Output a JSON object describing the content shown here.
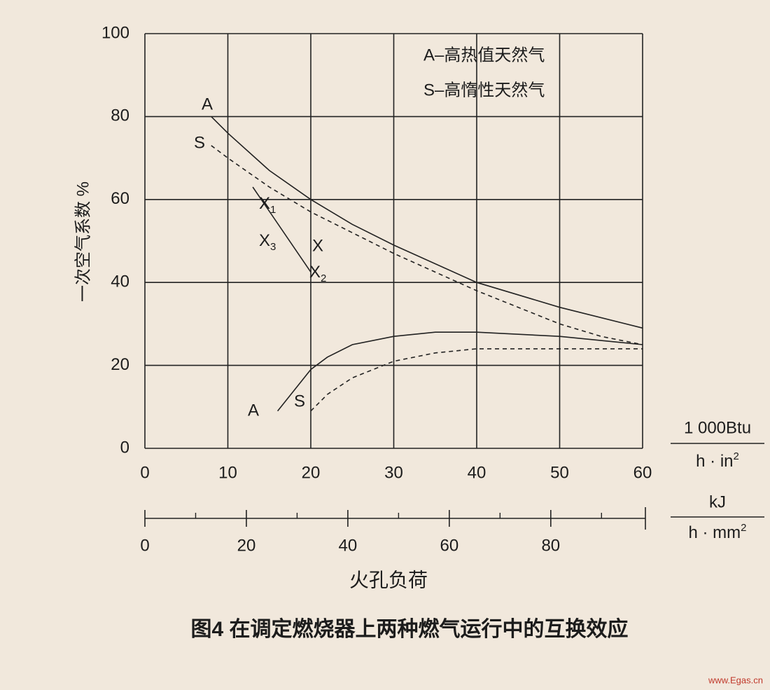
{
  "chart_data": {
    "type": "line",
    "caption": "图4  在调定燃烧器上两种燃气运行中的互换效应",
    "y_label": "一次空气系数 %",
    "x_label": "火孔负荷",
    "x_unit": {
      "top": "1 000Btu",
      "bottom": "h · in",
      "sup": "2"
    },
    "x2_unit": {
      "top": "kJ",
      "bottom": "h · mm",
      "sup": "2"
    },
    "legend_notes": [
      "A–高热值天然气",
      "S–高惰性天然气"
    ],
    "xlim": [
      0,
      60
    ],
    "xticks": [
      0,
      10,
      20,
      30,
      40,
      50,
      60
    ],
    "ylim": [
      0,
      100
    ],
    "yticks": [
      0,
      20,
      40,
      60,
      80,
      100
    ],
    "x2lim": [
      0,
      98.1
    ],
    "x2ticks": [
      0,
      20,
      40,
      60,
      80
    ],
    "x2minor": [
      10,
      30,
      50,
      70,
      90
    ],
    "grid": true,
    "series": [
      {
        "name": "A",
        "color": "#222222",
        "dash": false,
        "x": [
          8,
          10,
          15,
          20,
          25,
          30,
          40,
          50,
          60
        ],
        "values": [
          80,
          76,
          67,
          60,
          54,
          49,
          40,
          34,
          29
        ]
      },
      {
        "name": "S",
        "color": "#222222",
        "dash": true,
        "x": [
          8,
          10,
          15,
          20,
          25,
          30,
          40,
          50,
          55,
          60
        ],
        "values": [
          73,
          70,
          63,
          57,
          52,
          47,
          38,
          30,
          27,
          25
        ]
      },
      {
        "name": "A",
        "color": "#222222",
        "dash": false,
        "x": [
          16,
          18,
          20,
          22,
          25,
          30,
          35,
          40,
          50,
          60
        ],
        "values": [
          9,
          14,
          19,
          22,
          25,
          27,
          28,
          28,
          27,
          25
        ]
      },
      {
        "name": "S",
        "color": "#222222",
        "dash": true,
        "x": [
          20,
          22,
          25,
          30,
          35,
          40,
          50,
          60
        ],
        "values": [
          9,
          13,
          17,
          21,
          23,
          24,
          24,
          24
        ]
      },
      {
        "name": "X",
        "color": "#222222",
        "dash": false,
        "x": [
          13,
          20
        ],
        "values": [
          63,
          42.5
        ]
      }
    ],
    "annotations": [
      {
        "text": "X",
        "sub": "1"
      },
      {
        "text": "X",
        "sub": "3"
      },
      {
        "text": "X",
        "sub": "2"
      }
    ],
    "watermark": "www.Egas.cn"
  }
}
